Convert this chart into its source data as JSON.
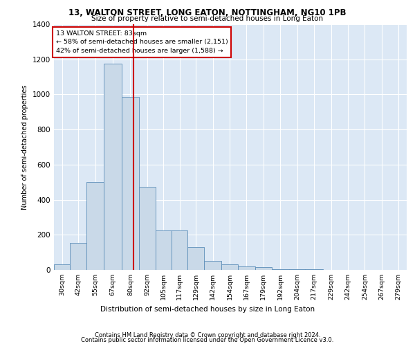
{
  "title": "13, WALTON STREET, LONG EATON, NOTTINGHAM, NG10 1PB",
  "subtitle": "Size of property relative to semi-detached houses in Long Eaton",
  "xlabel": "Distribution of semi-detached houses by size in Long Eaton",
  "ylabel": "Number of semi-detached properties",
  "footer1": "Contains HM Land Registry data © Crown copyright and database right 2024.",
  "footer2": "Contains public sector information licensed under the Open Government Licence v3.0.",
  "annotation_title": "13 WALTON STREET: 83sqm",
  "annotation_line1": "← 58% of semi-detached houses are smaller (2,151)",
  "annotation_line2": "42% of semi-detached houses are larger (1,588) →",
  "property_size": 83,
  "bar_color": "#c9d9e8",
  "bar_edge_color": "#5b8db8",
  "vline_color": "#cc0000",
  "background_color": "#dce8f5",
  "annotation_box_color": "#ffffff",
  "annotation_box_edge": "#cc0000",
  "categories": [
    "30sqm",
    "42sqm",
    "55sqm",
    "67sqm",
    "80sqm",
    "92sqm",
    "105sqm",
    "117sqm",
    "129sqm",
    "142sqm",
    "154sqm",
    "167sqm",
    "179sqm",
    "192sqm",
    "204sqm",
    "217sqm",
    "229sqm",
    "242sqm",
    "254sqm",
    "267sqm",
    "279sqm"
  ],
  "bin_edges": [
    24,
    36,
    48,
    61,
    74,
    87,
    99,
    111,
    123,
    135,
    148,
    160,
    173,
    185,
    198,
    210,
    223,
    235,
    248,
    260,
    273,
    285
  ],
  "values": [
    30,
    155,
    500,
    1175,
    985,
    475,
    225,
    225,
    130,
    50,
    30,
    20,
    15,
    5,
    3,
    2,
    1,
    0,
    0,
    0,
    0
  ],
  "ylim": [
    0,
    1400
  ],
  "yticks": [
    0,
    200,
    400,
    600,
    800,
    1000,
    1200,
    1400
  ]
}
